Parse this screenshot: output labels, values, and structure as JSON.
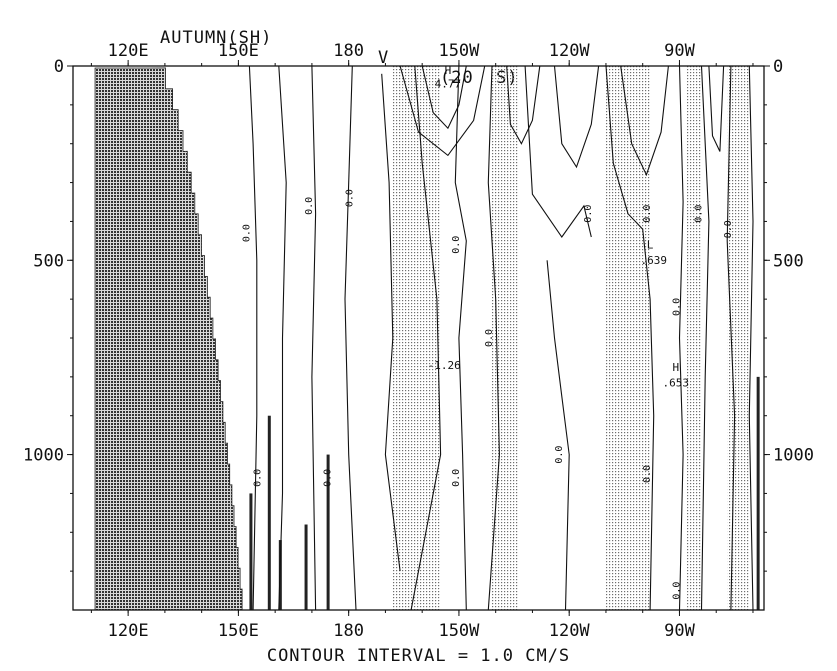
{
  "header": {
    "season": "AUTUMN(SH)",
    "variable": "V",
    "section": "(20  S)"
  },
  "footer": {
    "caption": "CONTOUR INTERVAL = 1.0 CM/S"
  },
  "colors": {
    "ink": "#111111",
    "land": "#3a3a3a",
    "stipple": "#7a7a7a"
  },
  "chart_data": {
    "type": "contour",
    "xlim": [
      105,
      293
    ],
    "ylim": [
      0,
      1400
    ],
    "x_ticks": [
      {
        "lon": 120,
        "label": "120E"
      },
      {
        "lon": 150,
        "label": "150E"
      },
      {
        "lon": 180,
        "label": "180"
      },
      {
        "lon": 210,
        "label": "150W"
      },
      {
        "lon": 240,
        "label": "120W"
      },
      {
        "lon": 270,
        "label": "90W"
      }
    ],
    "y_ticks": [
      {
        "depth": 0,
        "label": "0"
      },
      {
        "depth": 500,
        "label": "500"
      },
      {
        "depth": 1000,
        "label": "1000"
      }
    ],
    "negative_regions_stippled": [
      {
        "lon": [
          192,
          205
        ]
      },
      {
        "lon": [
          219,
          226
        ]
      },
      {
        "lon": [
          250,
          262
        ]
      },
      {
        "lon": [
          272,
          276
        ]
      },
      {
        "lon": [
          283,
          289
        ]
      }
    ],
    "extrema": [
      {
        "label": "H",
        "lon": 207,
        "depth": 20
      },
      {
        "label": "4.77",
        "lon": 207,
        "depth": 55
      },
      {
        "label": "-1.26",
        "lon": 206,
        "depth": 780
      },
      {
        "label": "L",
        "lon": 262,
        "depth": 470
      },
      {
        "label": ".639",
        "lon": 263,
        "depth": 510
      },
      {
        "label": "H",
        "lon": 269,
        "depth": 785
      },
      {
        "label": ".653",
        "lon": 269,
        "depth": 825
      }
    ],
    "zero_contour_label": "0.0"
  }
}
